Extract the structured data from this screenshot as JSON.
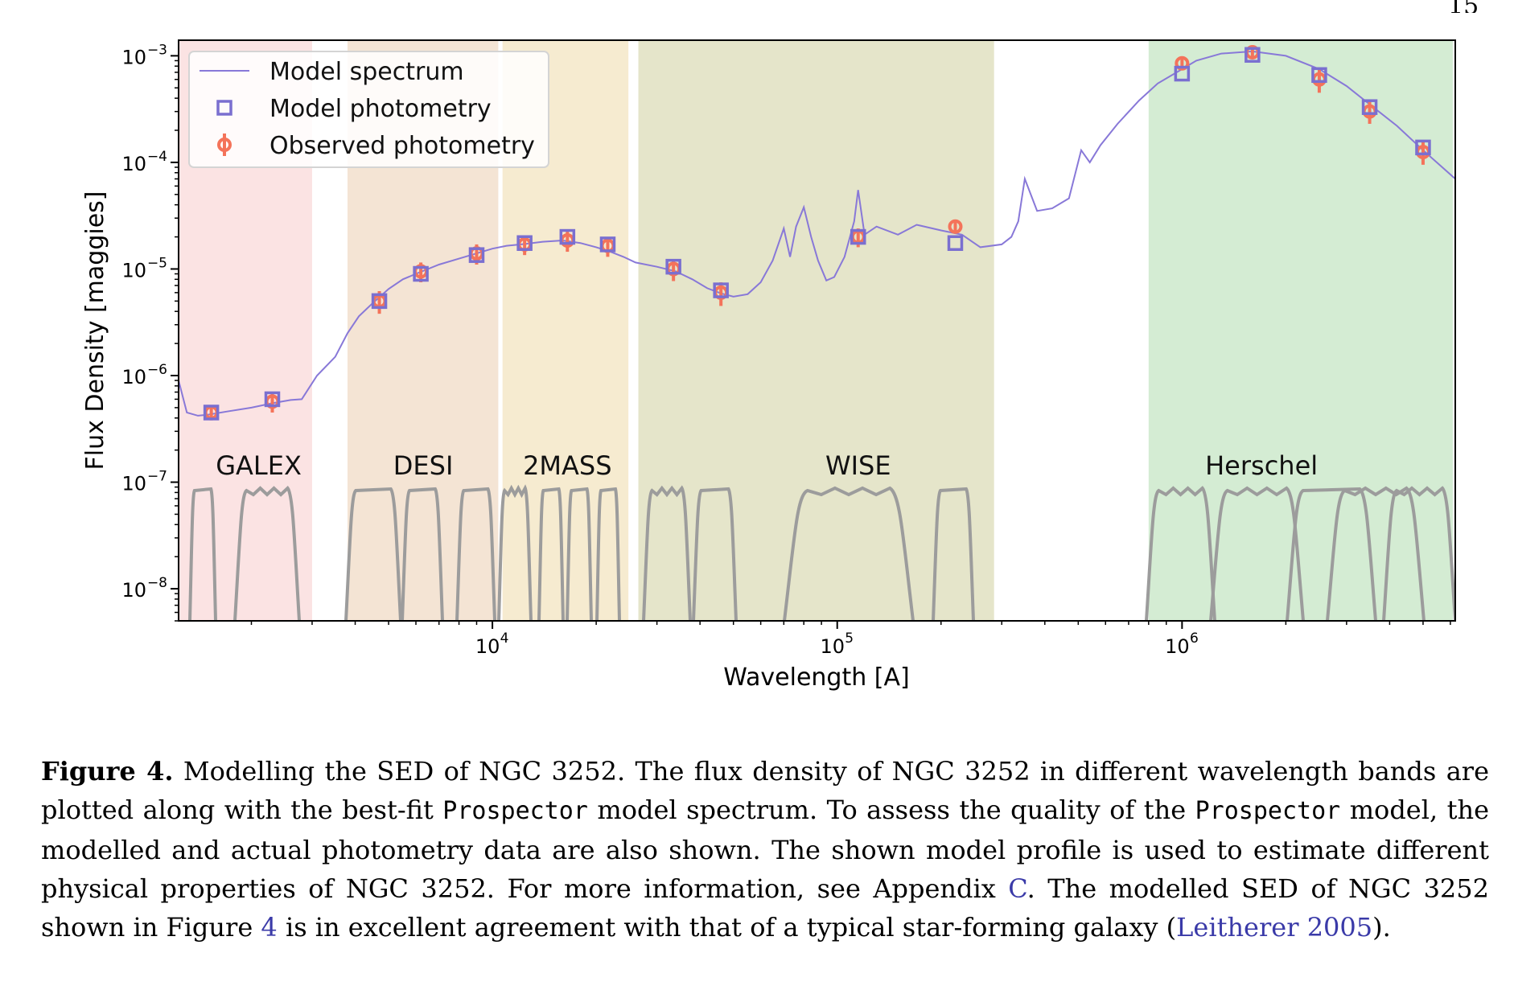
{
  "page": {
    "number_fragment": "15"
  },
  "chart_data": {
    "type": "scatter",
    "xlabel": "Wavelength [A]",
    "ylabel": "Flux Density [maggies]",
    "xscale": "log",
    "yscale": "log",
    "xlim": [
      1230,
      6200000
    ],
    "ylim": [
      5e-09,
      0.0014
    ],
    "x_ticks": [
      {
        "value": 10000,
        "label": "10",
        "exp": "4"
      },
      {
        "value": 100000,
        "label": "10",
        "exp": "5"
      },
      {
        "value": 1000000,
        "label": "10",
        "exp": "6"
      }
    ],
    "y_ticks": [
      {
        "value": 0.001,
        "label": "10",
        "exp": "−3"
      },
      {
        "value": 0.0001,
        "label": "10",
        "exp": "−4"
      },
      {
        "value": 1e-05,
        "label": "10",
        "exp": "−5"
      },
      {
        "value": 1e-06,
        "label": "10",
        "exp": "−6"
      },
      {
        "value": 1e-07,
        "label": "10",
        "exp": "−7"
      },
      {
        "value": 1e-08,
        "label": "10",
        "exp": "−8"
      }
    ],
    "grid": false,
    "legend": {
      "placement": "top-left",
      "entries": [
        {
          "label": "Model spectrum",
          "marker": "line",
          "color": "#8878d8"
        },
        {
          "label": "Model photometry",
          "marker": "square",
          "color": "#7a6fd0"
        },
        {
          "label": "Observed photometry",
          "marker": "circle-errorbar",
          "color": "#f4735a"
        }
      ]
    },
    "bands": [
      {
        "name": "GALEX",
        "x_range": [
          1230,
          3000
        ],
        "color": "#fbe3e3",
        "label_x": 2100
      },
      {
        "name": "DESI",
        "x_range": [
          3800,
          10400
        ],
        "color": "#f4e4d4",
        "label_x": 6300
      },
      {
        "name": "2MASS",
        "x_range": [
          10700,
          24800
        ],
        "color": "#f6ebd0",
        "label_x": 16500
      },
      {
        "name": "WISE",
        "x_range": [
          26500,
          285000
        ],
        "color": "#e5e5ca",
        "label_x": 115000
      },
      {
        "name": "Herschel",
        "x_range": [
          800000,
          6100000
        ],
        "color": "#d4ecd3",
        "label_x": 1700000
      }
    ],
    "series": [
      {
        "name": "Model spectrum",
        "type": "line",
        "color": "#8878d8",
        "x": [
          1230,
          1300,
          1400,
          1500,
          1700,
          2000,
          2300,
          2600,
          2800,
          3100,
          3500,
          3800,
          4100,
          4500,
          5000,
          5500,
          6000,
          7000,
          8000,
          9000,
          10000,
          11000,
          12500,
          14000,
          16000,
          18000,
          20000,
          22000,
          24000,
          26000,
          30000,
          34000,
          38000,
          42000,
          46000,
          50000,
          55000,
          60000,
          65000,
          70000,
          73000,
          76000,
          80000,
          84000,
          88000,
          93000,
          98000,
          105000,
          112000,
          115000,
          120000,
          130000,
          150000,
          170000,
          200000,
          230000,
          260000,
          300000,
          320000,
          335000,
          350000,
          380000,
          420000,
          470000,
          510000,
          540000,
          580000,
          650000,
          750000,
          850000,
          950000,
          1100000,
          1300000,
          1600000,
          2000000,
          2500000,
          3000000,
          3500000,
          4200000,
          5000000,
          6200000
        ],
        "y": [
          9e-07,
          4.5e-07,
          4.2e-07,
          4.3e-07,
          4.6e-07,
          5e-07,
          5.5e-07,
          5.9e-07,
          6e-07,
          1e-06,
          1.5e-06,
          2.5e-06,
          3.6e-06,
          4.8e-06,
          6.5e-06,
          8e-06,
          9e-06,
          1.1e-05,
          1.25e-05,
          1.4e-05,
          1.55e-05,
          1.65e-05,
          1.72e-05,
          1.8e-05,
          1.85e-05,
          1.75e-05,
          1.6e-05,
          1.45e-05,
          1.3e-05,
          1.15e-05,
          1.05e-05,
          9.5e-06,
          8e-06,
          6.6e-06,
          5.9e-06,
          5.5e-06,
          5.8e-06,
          7.5e-06,
          1.2e-05,
          2.4e-05,
          1.3e-05,
          2.5e-05,
          3.8e-05,
          2e-05,
          1.2e-05,
          7.8e-06,
          8.4e-06,
          1.3e-05,
          2.8e-05,
          5.5e-05,
          2.1e-05,
          2.5e-05,
          2.1e-05,
          2.6e-05,
          2.3e-05,
          2.1e-05,
          1.6e-05,
          1.7e-05,
          2e-05,
          2.8e-05,
          7e-05,
          3.5e-05,
          3.7e-05,
          4.6e-05,
          0.00013,
          0.0001,
          0.000145,
          0.00023,
          0.00038,
          0.00055,
          0.00068,
          0.0009,
          0.00105,
          0.0011,
          0.001,
          0.00075,
          0.00052,
          0.00035,
          0.00022,
          0.00013,
          7e-05
        ]
      },
      {
        "name": "Model photometry",
        "type": "scatter",
        "marker": "square",
        "color": "#7a6fd0",
        "x": [
          1530,
          2300,
          4700,
          6200,
          9000,
          12400,
          16500,
          21600,
          33500,
          46000,
          115000,
          220000,
          1000000,
          1600000,
          2500000,
          3500000,
          5000000
        ],
        "y": [
          4.5e-07,
          6e-07,
          5e-06,
          9e-06,
          1.35e-05,
          1.75e-05,
          2e-05,
          1.7e-05,
          1.05e-05,
          6.3e-06,
          2e-05,
          1.75e-05,
          0.00068,
          0.00102,
          0.00066,
          0.00033,
          0.000138
        ]
      },
      {
        "name": "Observed photometry",
        "type": "scatter",
        "marker": "circle-errorbar",
        "color": "#f4735a",
        "x": [
          1530,
          2300,
          4700,
          6200,
          9000,
          12400,
          16500,
          21600,
          33500,
          46000,
          115000,
          220000,
          1000000,
          1600000,
          2500000,
          3500000,
          5000000
        ],
        "y": [
          4.5e-07,
          5.7e-07,
          5e-06,
          9.5e-06,
          1.4e-05,
          1.7e-05,
          1.85e-05,
          1.65e-05,
          1e-05,
          6e-06,
          2e-05,
          2.5e-05,
          0.00085,
          0.00108,
          0.0006,
          0.0003,
          0.000125
        ],
        "err_lo": [
          7e-08,
          1.2e-07,
          1.2e-06,
          2e-06,
          3e-06,
          3.5e-06,
          4e-06,
          3.5e-06,
          2.3e-06,
          1.5e-06,
          4e-06,
          3e-06,
          0.0001,
          0.00015,
          0.00015,
          7e-05,
          3e-05
        ],
        "err_hi": [
          7e-08,
          1.2e-07,
          1.2e-06,
          2e-06,
          3e-06,
          3.5e-06,
          4e-06,
          3.5e-06,
          2.3e-06,
          1.5e-06,
          4e-06,
          3e-06,
          0.0001,
          0.00015,
          0.00015,
          7e-05,
          3e-05
        ]
      }
    ],
    "filter_curves_color": "#9c9c9c"
  },
  "caption": {
    "label": "Figure 4.",
    "s1": " Modelling the SED of NGC 3252. The flux density of NGC 3252 in different wavelength bands are plotted along with the best-fit ",
    "code1": "Prospector",
    "s2": " model spectrum. To assess the quality of the ",
    "code2": "Prospector",
    "s3": " model, the modelled and actual photometry data are also shown. The shown model profile is used to estimate different physical properties of NGC 3252. For more information, see Appendix ",
    "link_appendix": "C",
    "s4": ". The modelled SED of NGC 3252 shown in Figure ",
    "link_figure": "4",
    "s5": " is in excellent agreement with that of a typical star-forming galaxy (",
    "link_ref": "Leitherer 2005",
    "s6": ")."
  }
}
